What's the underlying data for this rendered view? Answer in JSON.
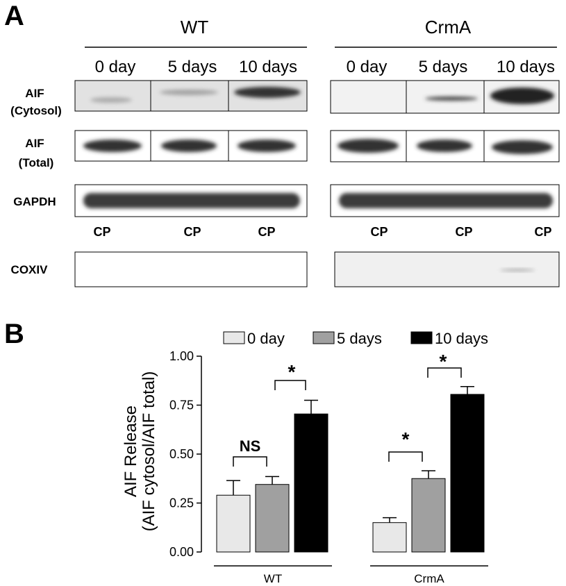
{
  "panel_labels": [
    "A",
    "B"
  ],
  "panel_a": {
    "groups": [
      {
        "name": "WT",
        "lanes": [
          "0 day",
          "5 days",
          "10 days"
        ]
      },
      {
        "name": "CrmA",
        "lanes": [
          "0 day",
          "5 days",
          "10 days"
        ]
      }
    ],
    "rows": [
      [
        "AIF",
        "(Cytosol)"
      ],
      [
        "AIF",
        "(Total)"
      ],
      [
        "GAPDH"
      ]
    ],
    "fraction_labels": [
      "CP",
      "CP",
      "CP",
      "CP",
      "CP",
      "CP"
    ],
    "control_row": "COXIV"
  },
  "chart_data": {
    "type": "bar",
    "y_label": [
      "AIF Release",
      "(AIF cytosol/AIF total)"
    ],
    "categories": [
      "WT",
      "CrmA"
    ],
    "series": [
      {
        "name": "0 day",
        "color": "#e8e8e8",
        "values": [
          0.29,
          0.15
        ],
        "errors": [
          0.075,
          0.025
        ]
      },
      {
        "name": "5 days",
        "color": "#a0a0a0",
        "values": [
          0.345,
          0.375
        ],
        "errors": [
          0.04,
          0.04
        ]
      },
      {
        "name": "10 days",
        "color": "#000000",
        "values": [
          0.705,
          0.805
        ],
        "errors": [
          0.07,
          0.04
        ]
      }
    ],
    "ylim": [
      0,
      1
    ],
    "yticks": [
      {
        "value": 0,
        "label": "0.00"
      },
      {
        "value": 0.25,
        "label": "0.25"
      },
      {
        "value": 0.5,
        "label": "0.50"
      },
      {
        "value": 0.75,
        "label": "0.75"
      },
      {
        "value": 1,
        "label": "1.00"
      }
    ],
    "annotations": [
      "NS",
      "*",
      "*",
      "*"
    ]
  }
}
